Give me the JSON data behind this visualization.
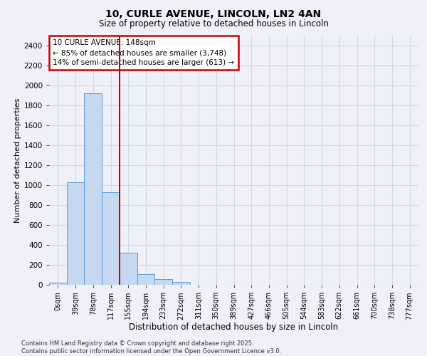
{
  "title_line1": "10, CURLE AVENUE, LINCOLN, LN2 4AN",
  "title_line2": "Size of property relative to detached houses in Lincoln",
  "xlabel": "Distribution of detached houses by size in Lincoln",
  "ylabel": "Number of detached properties",
  "bar_labels": [
    "0sqm",
    "39sqm",
    "78sqm",
    "117sqm",
    "155sqm",
    "194sqm",
    "233sqm",
    "272sqm",
    "311sqm",
    "350sqm",
    "389sqm",
    "427sqm",
    "466sqm",
    "505sqm",
    "544sqm",
    "583sqm",
    "622sqm",
    "661sqm",
    "700sqm",
    "738sqm",
    "777sqm"
  ],
  "bar_values": [
    20,
    1030,
    1920,
    930,
    320,
    110,
    55,
    30,
    0,
    0,
    0,
    0,
    0,
    0,
    0,
    0,
    0,
    0,
    0,
    0,
    0
  ],
  "bar_color": "#c5d8f0",
  "bar_edge_color": "#5b9bd5",
  "background_color": "#f0f0f8",
  "plot_bg_color": "#f0f0f8",
  "grid_color": "#d0d8e8",
  "annotation_text": "10 CURLE AVENUE: 148sqm\n← 85% of detached houses are smaller (3,748)\n14% of semi-detached houses are larger (613) →",
  "annotation_box_color": "#ffffff",
  "annotation_border_color": "#cc0000",
  "red_line_x": 4.0,
  "ylim": [
    0,
    2500
  ],
  "yticks": [
    0,
    200,
    400,
    600,
    800,
    1000,
    1200,
    1400,
    1600,
    1800,
    2000,
    2200,
    2400
  ],
  "footer_line1": "Contains HM Land Registry data © Crown copyright and database right 2025.",
  "footer_line2": "Contains public sector information licensed under the Open Government Licence v3.0."
}
